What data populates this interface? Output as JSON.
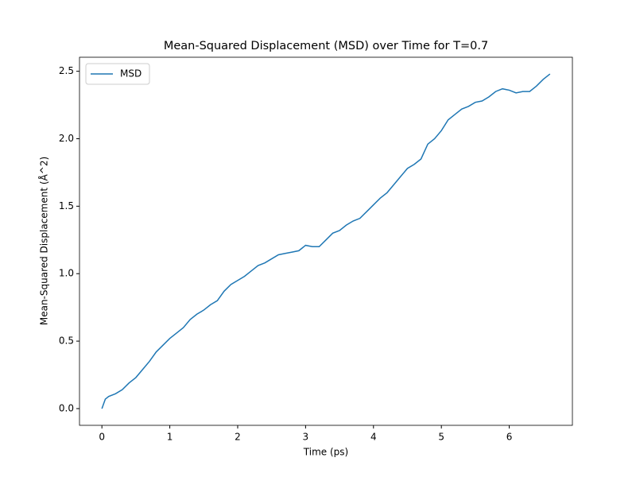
{
  "chart_data": {
    "type": "line",
    "title": "Mean-Squared Displacement (MSD) over Time for T=0.7",
    "xlabel": "Time (ps)",
    "ylabel": "Mean-Squared Displacement (Å^2)",
    "x": [
      0,
      0.05,
      0.1,
      0.2,
      0.3,
      0.4,
      0.5,
      0.6,
      0.7,
      0.8,
      0.9,
      1.0,
      1.1,
      1.2,
      1.3,
      1.4,
      1.5,
      1.6,
      1.7,
      1.8,
      1.9,
      2.0,
      2.1,
      2.2,
      2.3,
      2.4,
      2.5,
      2.6,
      2.7,
      2.8,
      2.9,
      3.0,
      3.1,
      3.2,
      3.3,
      3.4,
      3.5,
      3.6,
      3.7,
      3.8,
      3.9,
      4.0,
      4.1,
      4.2,
      4.3,
      4.4,
      4.5,
      4.6,
      4.7,
      4.8,
      4.9,
      5.0,
      5.1,
      5.2,
      5.3,
      5.4,
      5.5,
      5.6,
      5.7,
      5.8,
      5.9,
      6.0,
      6.1,
      6.2,
      6.3,
      6.4,
      6.5,
      6.6
    ],
    "series": [
      {
        "name": "MSD",
        "color": "#1f77b4",
        "values": [
          0,
          0.07,
          0.09,
          0.11,
          0.14,
          0.19,
          0.23,
          0.29,
          0.35,
          0.42,
          0.47,
          0.52,
          0.56,
          0.6,
          0.66,
          0.7,
          0.73,
          0.77,
          0.8,
          0.87,
          0.92,
          0.95,
          0.98,
          1.02,
          1.06,
          1.08,
          1.11,
          1.14,
          1.15,
          1.16,
          1.17,
          1.21,
          1.2,
          1.2,
          1.25,
          1.3,
          1.32,
          1.36,
          1.39,
          1.41,
          1.46,
          1.51,
          1.56,
          1.6,
          1.66,
          1.72,
          1.78,
          1.81,
          1.85,
          1.96,
          2.0,
          2.06,
          2.14,
          2.18,
          2.22,
          2.24,
          2.27,
          2.28,
          2.31,
          2.35,
          2.37,
          2.36,
          2.34,
          2.35,
          2.35,
          2.39,
          2.44,
          2.48
        ]
      }
    ],
    "xlim": [
      -0.33,
      6.93
    ],
    "xticks": [
      0,
      1,
      2,
      3,
      4,
      5,
      6
    ],
    "ylim": [
      -0.124,
      2.604
    ],
    "yticks": [
      {
        "value": 0,
        "label": "0.0"
      },
      0.5,
      {
        "value": 1,
        "label": "1.0"
      },
      1.5,
      {
        "value": 2,
        "label": "2.0"
      },
      2.5
    ],
    "legend": "upper left"
  }
}
